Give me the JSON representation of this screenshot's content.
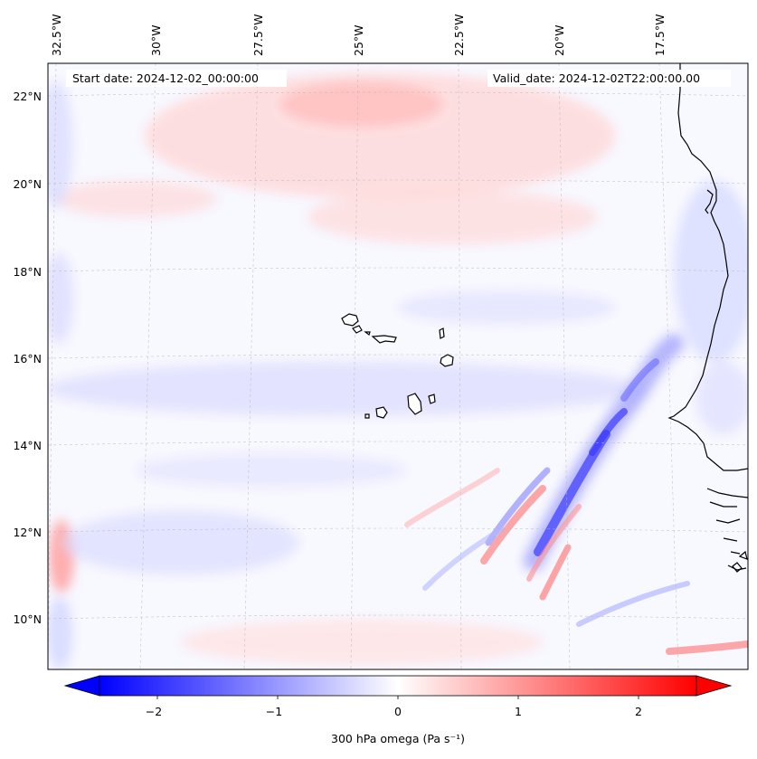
{
  "map": {
    "start_date_label": "Start date: 2024-12-02_00:00:00",
    "valid_date_label": "Valid_date: 2024-12-02T22:00:00.00",
    "lon_labels": [
      "32.5°W",
      "30°W",
      "27.5°W",
      "25°W",
      "22.5°W",
      "20°W",
      "17.5°W"
    ],
    "lat_labels": [
      "22°N",
      "20°N",
      "18°N",
      "16°N",
      "14°N",
      "12°N",
      "10°N"
    ],
    "extent": {
      "lon_min": -32.6,
      "lon_max": -15.5,
      "lat_min": 8.9,
      "lat_max": 22.7
    },
    "background_color": "#f8f8ff",
    "coastline_color": "#000000"
  },
  "colorbar": {
    "label": "300 hPa omega (Pa s⁻¹)",
    "tick_labels": [
      "−2",
      "−1",
      "0",
      "1",
      "2"
    ],
    "tick_values": [
      -2,
      -1,
      0,
      1,
      2
    ],
    "range": [
      -2.5,
      2.5
    ],
    "colormap": "bwr",
    "min_color": "#0000ff",
    "mid_color": "#ffffff",
    "max_color": "#ff0000"
  }
}
